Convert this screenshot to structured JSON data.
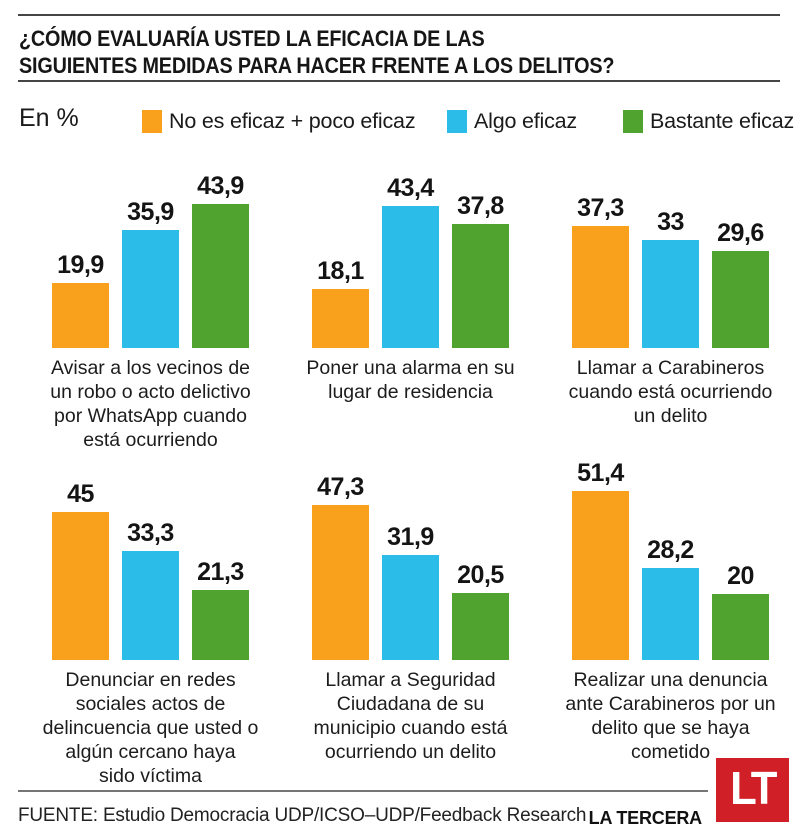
{
  "header": {
    "title_line1": "¿CÓMO EVALUARÍA USTED LA EFICACIA DE LAS",
    "title_line2": "SIGUIENTES MEDIDAS PARA HACER FRENTE A LOS DELITOS?",
    "unit_label": "En %"
  },
  "legend": {
    "items": [
      {
        "label": "No es eficaz + poco eficaz",
        "color": "#F9A11D"
      },
      {
        "label": "Algo eficaz",
        "color": "#2BBCE8"
      },
      {
        "label": "Bastante eficaz",
        "color": "#4FA32E"
      }
    ]
  },
  "chart_data": {
    "type": "bar",
    "unit": "%",
    "title": "¿Cómo evaluaría usted la eficacia de las siguientes medidas para hacer frente a los delitos?",
    "legend_position": "top",
    "grid": false,
    "series": [
      "No es eficaz + poco eficaz",
      "Algo eficaz",
      "Bastante eficaz"
    ],
    "series_colors": [
      "#F9A11D",
      "#2BBCE8",
      "#4FA32E"
    ],
    "groups": [
      {
        "category": "Avisar a los vecinos de un robo o acto delictivo por WhatsApp cuando está ocurriendo",
        "category_lines": [
          "Avisar a los vecinos de",
          "un robo o acto delictivo",
          "por WhatsApp cuando",
          "está ocurriendo"
        ],
        "values": [
          19.9,
          35.9,
          43.9
        ],
        "value_labels": [
          "19,9",
          "35,9",
          "43,9"
        ]
      },
      {
        "category": "Poner una alarma en su lugar de residencia",
        "category_lines": [
          "Poner una alarma en su",
          "lugar de residencia"
        ],
        "values": [
          18.1,
          43.4,
          37.8
        ],
        "value_labels": [
          "18,1",
          "43,4",
          "37,8"
        ]
      },
      {
        "category": "Llamar a Carabineros cuando está ocurriendo un delito",
        "category_lines": [
          "Llamar a Carabineros",
          "cuando está ocurriendo",
          "un delito"
        ],
        "values": [
          37.3,
          33,
          29.6
        ],
        "value_labels": [
          "37,3",
          "33",
          "29,6"
        ]
      },
      {
        "category": "Denunciar en redes sociales actos de delincuencia que usted o algún cercano haya sido víctima",
        "category_lines": [
          "Denunciar en redes",
          "sociales actos de",
          "delincuencia que usted o",
          "algún cercano haya",
          "sido víctima"
        ],
        "values": [
          45,
          33.3,
          21.3
        ],
        "value_labels": [
          "45",
          "33,3",
          "21,3"
        ]
      },
      {
        "category": "Llamar a Seguridad Ciudadana de su municipio cuando está ocurriendo un delito",
        "category_lines": [
          "Llamar a Seguridad",
          "Ciudadana de su",
          "municipio cuando está",
          "ocurriendo un delito"
        ],
        "values": [
          47.3,
          31.9,
          20.5
        ],
        "value_labels": [
          "47,3",
          "31,9",
          "20,5"
        ]
      },
      {
        "category": "Realizar una denuncia ante Carabineros por un delito que se haya cometido",
        "category_lines": [
          "Realizar una denuncia",
          "ante Carabineros por un",
          "delito que se haya",
          "cometido"
        ],
        "values": [
          51.4,
          28.2,
          20
        ],
        "value_labels": [
          "51,4",
          "28,2",
          "20"
        ]
      }
    ]
  },
  "footer": {
    "source": "FUENTE: Estudio Democracia UDP/ICSO–UDP/Feedback Research",
    "brand": "LA TERCERA",
    "logo_text": "LT",
    "logo_color": "#D01F27"
  }
}
